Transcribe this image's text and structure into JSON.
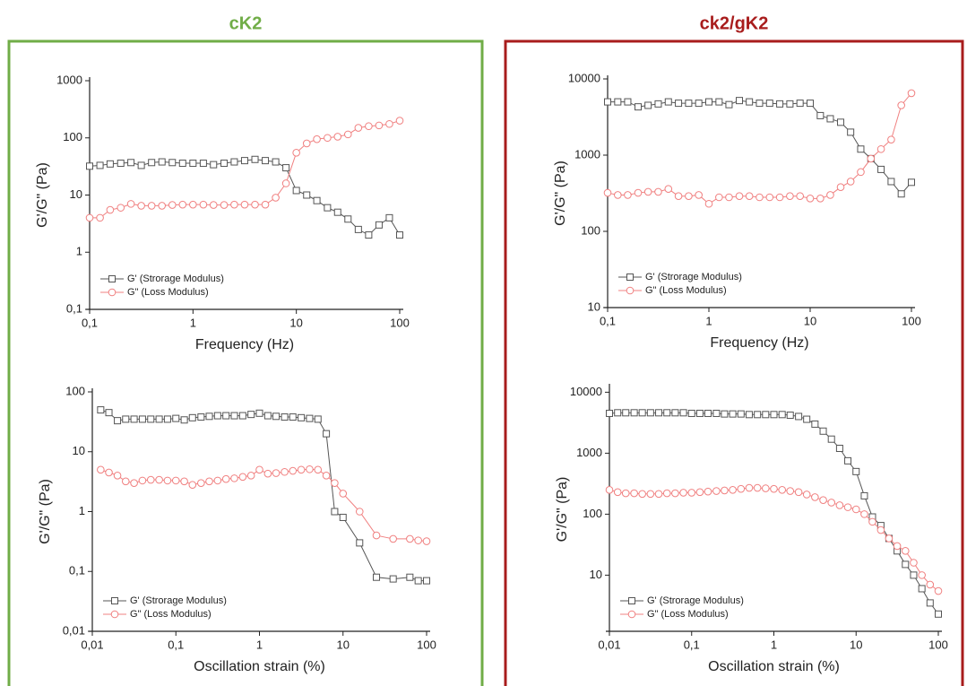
{
  "panels": [
    {
      "title": "cK2"
    },
    {
      "title": "ck2/gK2"
    }
  ],
  "chart_data": [
    {
      "type": "line",
      "xscale": "log",
      "yscale": "log",
      "xlabel": "Frequency (Hz)",
      "ylabel": "G'/G\" (Pa)",
      "legend": "lower left",
      "x": [
        0.1,
        0.126,
        0.158,
        0.2,
        0.251,
        0.316,
        0.398,
        0.501,
        0.631,
        0.794,
        1,
        1.26,
        1.58,
        2,
        2.51,
        3.16,
        3.98,
        5.01,
        6.31,
        7.94,
        10,
        12.6,
        15.8,
        20,
        25.1,
        31.6,
        39.8,
        50.1,
        63.1,
        79.4,
        100
      ],
      "xlim": [
        0.1,
        100
      ],
      "xticks": [
        {
          "value": 0.1,
          "label": "0,1"
        },
        1,
        10,
        100
      ],
      "ylim": [
        0.1,
        1000
      ],
      "yticks": [
        {
          "value": 0.1,
          "label": "0,1"
        },
        1,
        10,
        100,
        1000
      ],
      "series": [
        {
          "name": "G' (Strorage Modulus)",
          "color": "#555555",
          "marker": "square",
          "values": [
            32,
            33,
            35,
            36,
            37,
            33,
            37,
            38,
            37,
            36,
            36,
            36,
            34,
            36,
            38,
            40,
            42,
            40,
            38,
            30,
            12,
            10,
            8,
            6,
            5,
            3.8,
            2.5,
            2,
            3,
            4,
            2
          ]
        },
        {
          "name": "G\" (Loss Modulus)",
          "color": "#f08080",
          "marker": "circle",
          "values": [
            4,
            4,
            5.5,
            6,
            7,
            6.5,
            6.5,
            6.5,
            6.7,
            6.8,
            6.8,
            6.8,
            6.7,
            6.7,
            6.8,
            6.8,
            6.8,
            6.8,
            9,
            16,
            55,
            80,
            95,
            100,
            105,
            115,
            150,
            160,
            165,
            175,
            200
          ]
        }
      ]
    },
    {
      "type": "line",
      "xscale": "log",
      "yscale": "log",
      "xlabel": "Frequency (Hz)",
      "ylabel": "G'/G\" (Pa)",
      "legend": "lower left",
      "x": [
        0.1,
        0.126,
        0.158,
        0.2,
        0.251,
        0.316,
        0.398,
        0.501,
        0.631,
        0.794,
        1,
        1.26,
        1.58,
        2,
        2.51,
        3.16,
        3.98,
        5.01,
        6.31,
        7.94,
        10,
        12.6,
        15.8,
        20,
        25.1,
        31.6,
        39.8,
        50.1,
        63.1,
        79.4,
        100
      ],
      "xlim": [
        0.1,
        100
      ],
      "xticks": [
        {
          "value": 0.1,
          "label": "0,1"
        },
        1,
        10,
        100
      ],
      "ylim": [
        10,
        10000
      ],
      "yticks": [
        10,
        100,
        1000,
        10000
      ],
      "series": [
        {
          "name": "G' (Strorage Modulus)",
          "color": "#555555",
          "marker": "square",
          "values": [
            5000,
            5000,
            5000,
            4300,
            4500,
            4700,
            5000,
            4800,
            4800,
            4800,
            5000,
            5000,
            4600,
            5200,
            5000,
            4800,
            4800,
            4700,
            4700,
            4800,
            4800,
            3300,
            3000,
            2700,
            2000,
            1200,
            900,
            650,
            450,
            310,
            440
          ]
        },
        {
          "name": "G\" (Loss Modulus)",
          "color": "#f08080",
          "marker": "circle",
          "values": [
            320,
            300,
            300,
            320,
            330,
            330,
            360,
            290,
            290,
            300,
            230,
            280,
            280,
            290,
            290,
            280,
            280,
            280,
            290,
            290,
            270,
            270,
            300,
            380,
            450,
            600,
            900,
            1200,
            1600,
            4500,
            6500
          ]
        }
      ]
    },
    {
      "type": "line",
      "xscale": "log",
      "yscale": "log",
      "xlabel": "Oscillation strain (%)",
      "ylabel": "G'/G\" (Pa)",
      "legend": "lower left",
      "x": [
        0.0126,
        0.0158,
        0.02,
        0.0251,
        0.0316,
        0.0398,
        0.0501,
        0.0631,
        0.0794,
        0.1,
        0.126,
        0.158,
        0.2,
        0.251,
        0.316,
        0.398,
        0.501,
        0.631,
        0.794,
        1,
        1.26,
        1.58,
        2,
        2.51,
        3.16,
        3.98,
        5.01,
        6.31,
        7.94,
        10,
        15.8,
        25.1,
        39.8,
        63.1,
        79.4,
        100
      ],
      "xlim": [
        0.01,
        100
      ],
      "xticks": [
        {
          "value": 0.01,
          "label": "0,01"
        },
        {
          "value": 0.1,
          "label": "0,1"
        },
        1,
        10,
        100
      ],
      "ylim": [
        0.01,
        100
      ],
      "yticks": [
        {
          "value": 0.01,
          "label": "0,01"
        },
        {
          "value": 0.1,
          "label": "0,1"
        },
        1,
        10,
        100
      ],
      "series": [
        {
          "name": "G' (Strorage Modulus)",
          "color": "#555555",
          "marker": "square",
          "values": [
            50,
            45,
            33,
            35,
            35,
            35,
            35,
            35,
            35,
            36,
            34,
            37,
            38,
            39,
            40,
            40,
            40,
            40,
            42,
            44,
            40,
            39,
            38,
            38,
            37,
            36,
            35,
            20,
            1,
            0.8,
            0.3,
            0.08,
            0.075,
            0.08,
            0.07,
            0.07
          ]
        },
        {
          "name": "G\" (Loss Modulus)",
          "color": "#f08080",
          "marker": "circle",
          "values": [
            5,
            4.5,
            4,
            3.2,
            3,
            3.3,
            3.4,
            3.4,
            3.3,
            3.3,
            3.2,
            2.8,
            3,
            3.2,
            3.3,
            3.5,
            3.6,
            3.8,
            4,
            5,
            4.3,
            4.4,
            4.6,
            4.8,
            5,
            5.1,
            5,
            4,
            3,
            2,
            1,
            0.4,
            0.35,
            0.35,
            0.33,
            0.32
          ]
        }
      ]
    },
    {
      "type": "line",
      "xscale": "log",
      "yscale": "log",
      "xlabel": "Oscillation strain (%)",
      "ylabel": "G'/G\" (Pa)",
      "legend": "lower left",
      "x": [
        0.01,
        0.0126,
        0.0158,
        0.02,
        0.0251,
        0.0316,
        0.0398,
        0.0501,
        0.0631,
        0.0794,
        0.1,
        0.126,
        0.158,
        0.2,
        0.251,
        0.316,
        0.398,
        0.501,
        0.631,
        0.794,
        1,
        1.26,
        1.58,
        2,
        2.51,
        3.16,
        3.98,
        5.01,
        6.31,
        7.94,
        10,
        12.6,
        15.8,
        20,
        25.1,
        31.6,
        39.8,
        50.1,
        63.1,
        79.4,
        100
      ],
      "xlim": [
        0.01,
        100
      ],
      "xticks": [
        {
          "value": 0.01,
          "label": "0,01"
        },
        {
          "value": 0.1,
          "label": "0,1"
        },
        1,
        10,
        100
      ],
      "ylim": [
        1.2,
        12000
      ],
      "yticks": [
        10,
        100,
        1000,
        10000
      ],
      "series": [
        {
          "name": "G' (Strorage Modulus)",
          "color": "#555555",
          "marker": "square",
          "values": [
            4500,
            4600,
            4600,
            4600,
            4600,
            4600,
            4600,
            4600,
            4600,
            4600,
            4500,
            4500,
            4500,
            4500,
            4400,
            4400,
            4400,
            4300,
            4300,
            4300,
            4300,
            4300,
            4200,
            4000,
            3600,
            3000,
            2300,
            1700,
            1200,
            750,
            500,
            200,
            90,
            65,
            40,
            25,
            15,
            10,
            6,
            3.5,
            2.3
          ]
        },
        {
          "name": "G\" (Loss Modulus)",
          "color": "#f08080",
          "marker": "circle",
          "values": [
            250,
            230,
            220,
            220,
            215,
            215,
            215,
            220,
            220,
            225,
            225,
            230,
            235,
            240,
            245,
            250,
            260,
            270,
            270,
            265,
            260,
            250,
            240,
            230,
            210,
            190,
            170,
            155,
            140,
            130,
            120,
            100,
            75,
            55,
            40,
            30,
            25,
            16,
            10,
            7,
            5.5
          ]
        }
      ]
    }
  ]
}
